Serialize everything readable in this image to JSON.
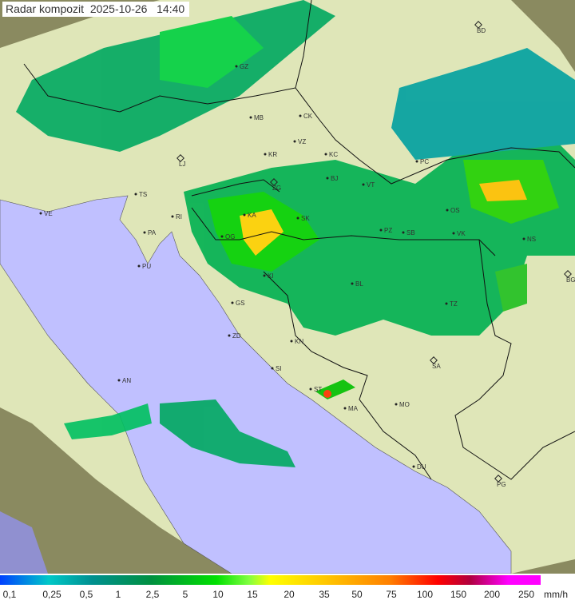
{
  "title": {
    "product": "Radar kompozit",
    "date": "2025-10-26",
    "time": "14:40"
  },
  "legend": {
    "unit": "mm/h",
    "values": [
      "0,1",
      "0,25",
      "0,5",
      "1",
      "2,5",
      "5",
      "10",
      "15",
      "20",
      "35",
      "50",
      "75",
      "100",
      "150",
      "200",
      "250"
    ]
  },
  "colors": {
    "sea": "#c0c0ff",
    "coverage": "#e0e8b0",
    "terrain": "#8a9060",
    "rain_light": "#00a060",
    "rain_mid": "#00d000",
    "rain_heavy": "#ffd000"
  },
  "cities": [
    {
      "code": "GZ"
    },
    {
      "code": "MB"
    },
    {
      "code": "CK"
    },
    {
      "code": "VZ"
    },
    {
      "code": "KR"
    },
    {
      "code": "KC"
    },
    {
      "code": "LJ"
    },
    {
      "code": "BJ"
    },
    {
      "code": "VT"
    },
    {
      "code": "ZG"
    },
    {
      "code": "TS"
    },
    {
      "code": "VE"
    },
    {
      "code": "RI"
    },
    {
      "code": "KA"
    },
    {
      "code": "SK"
    },
    {
      "code": "PA"
    },
    {
      "code": "PZ"
    },
    {
      "code": "SB"
    },
    {
      "code": "OS"
    },
    {
      "code": "VK"
    },
    {
      "code": "NS"
    },
    {
      "code": "OG"
    },
    {
      "code": "PU"
    },
    {
      "code": "KI"
    },
    {
      "code": "BL"
    },
    {
      "code": "BG"
    },
    {
      "code": "GS"
    },
    {
      "code": "TZ"
    },
    {
      "code": "ZD"
    },
    {
      "code": "KN"
    },
    {
      "code": "SA"
    },
    {
      "code": "SI"
    },
    {
      "code": "AN"
    },
    {
      "code": "ST"
    },
    {
      "code": "MA"
    },
    {
      "code": "MO"
    },
    {
      "code": "DU"
    },
    {
      "code": "PG"
    },
    {
      "code": "BD"
    },
    {
      "code": "PC"
    }
  ]
}
